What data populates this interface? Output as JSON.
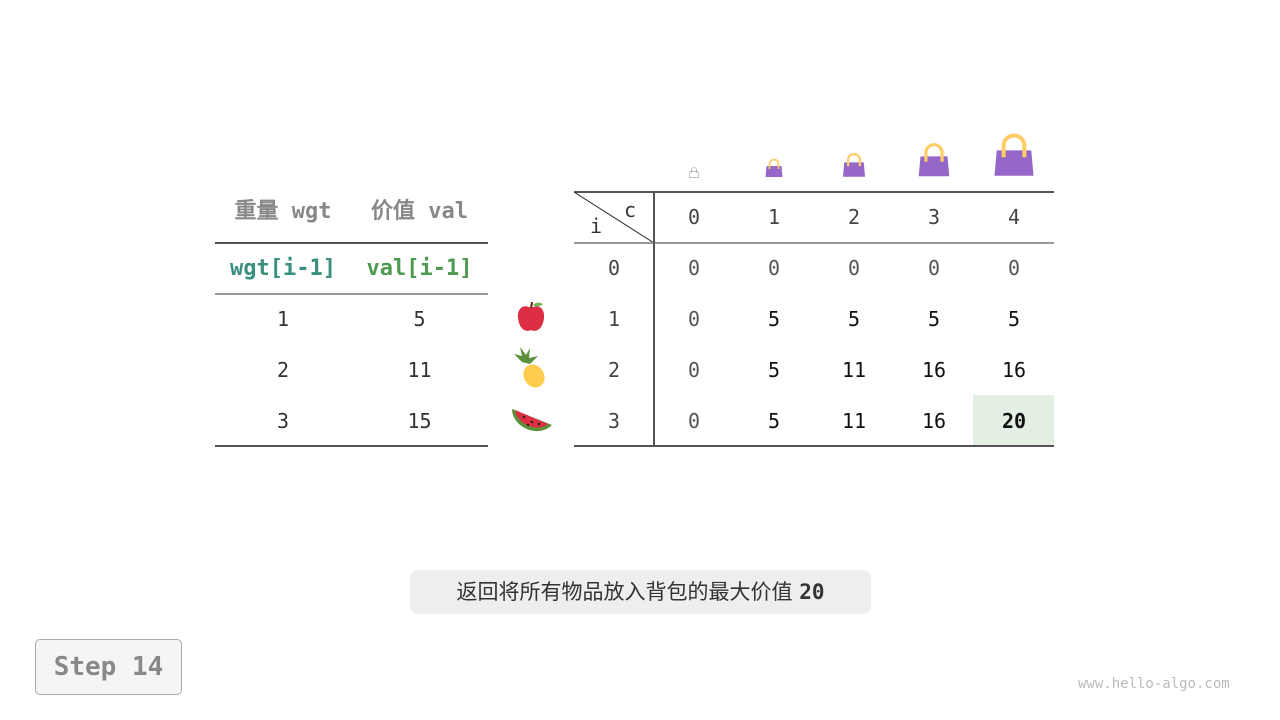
{
  "left_table": {
    "headers": [
      "重量 wgt",
      "价值 val"
    ],
    "subheaders": [
      "wgt[i-1]",
      "val[i-1]"
    ],
    "rows": [
      [
        "1",
        "5"
      ],
      [
        "2",
        "11"
      ],
      [
        "3",
        "15"
      ]
    ],
    "subheader_colors": [
      "#3a9080",
      "#4e9a50"
    ]
  },
  "items": [
    "apple-icon",
    "pineapple-icon",
    "watermelon-icon"
  ],
  "dp_table": {
    "corner_col": "c",
    "corner_row": "i",
    "col_headers": [
      "0",
      "1",
      "2",
      "3",
      "4"
    ],
    "row_headers": [
      "0",
      "1",
      "2",
      "3"
    ],
    "rows": [
      [
        "0",
        "0",
        "0",
        "0",
        "0"
      ],
      [
        "0",
        "5",
        "5",
        "5",
        "5"
      ],
      [
        "0",
        "5",
        "11",
        "16",
        "16"
      ],
      [
        "0",
        "5",
        "11",
        "16",
        "20"
      ]
    ],
    "highlight_color": "#e3efe3"
  },
  "bag_icon": "handbag-icon",
  "bag_color": "#9567c9",
  "caption": {
    "text": "返回将所有物品放入背包的最大价值",
    "value": "20"
  },
  "step": "Step 14",
  "watermark": "www.hello-algo.com"
}
